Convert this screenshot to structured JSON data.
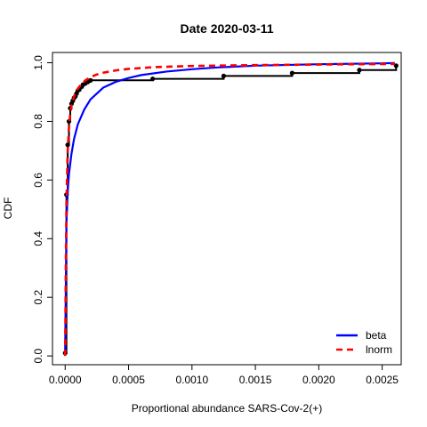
{
  "chart_data": {
    "type": "line",
    "title": "Date 2020-03-11",
    "xlabel": "Proportional abundance SARS-Cov-2(+)",
    "ylabel": "CDF",
    "xlim": [
      -0.0001,
      0.00265
    ],
    "ylim": [
      -0.03,
      1.035
    ],
    "x_ticks": [
      0,
      0.0005,
      0.001,
      0.0015,
      0.002,
      0.0025
    ],
    "x_tick_labels": [
      "0.0000",
      "0.0005",
      "0.0010",
      "0.0015",
      "0.0020",
      "0.0025"
    ],
    "y_ticks": [
      0,
      0.2,
      0.4,
      0.6,
      0.8,
      1.0
    ],
    "y_tick_labels": [
      "0.0",
      "0.2",
      "0.4",
      "0.6",
      "0.8",
      "1.0"
    ],
    "grid": false,
    "legend_position": "bottom-right",
    "empirical": {
      "x": [
        0.0,
        1e-05,
        2e-05,
        3e-05,
        4e-05,
        5e-05,
        6e-05,
        7e-05,
        8e-05,
        9e-05,
        0.0001,
        0.00012,
        0.00014,
        0.00016,
        0.00018,
        0.0002,
        0.00069,
        0.00125,
        0.00179,
        0.00232,
        0.00261
      ],
      "y": [
        0.01,
        0.55,
        0.72,
        0.8,
        0.845,
        0.86,
        0.87,
        0.88,
        0.885,
        0.895,
        0.905,
        0.915,
        0.925,
        0.93,
        0.935,
        0.94,
        0.945,
        0.955,
        0.965,
        0.975,
        0.99
      ],
      "color": "#000000"
    },
    "series": [
      {
        "name": "beta",
        "color": "#0000ff",
        "x": [
          0.0,
          1e-05,
          2e-05,
          3e-05,
          5e-05,
          7e-05,
          0.0001,
          0.00015,
          0.0002,
          0.0003,
          0.0004,
          0.0005,
          0.0006,
          0.0008,
          0.001,
          0.0012,
          0.0015,
          0.002,
          0.0025,
          0.0026
        ],
        "y": [
          0.01,
          0.45,
          0.56,
          0.62,
          0.69,
          0.74,
          0.79,
          0.84,
          0.875,
          0.915,
          0.935,
          0.948,
          0.958,
          0.97,
          0.978,
          0.984,
          0.99,
          0.995,
          0.998,
          0.999
        ]
      },
      {
        "name": "lnorm",
        "color": "#ff0000",
        "x": [
          0.0,
          5e-06,
          1e-05,
          2e-05,
          3e-05,
          4e-05,
          5e-05,
          7e-05,
          0.0001,
          0.00013,
          0.00016,
          0.0002,
          0.00025,
          0.0003,
          0.0004,
          0.0005,
          0.0007,
          0.001,
          0.0015,
          0.002,
          0.0026
        ],
        "y": [
          0.0,
          0.3,
          0.52,
          0.7,
          0.78,
          0.825,
          0.853,
          0.885,
          0.912,
          0.928,
          0.94,
          0.951,
          0.96,
          0.966,
          0.974,
          0.979,
          0.985,
          0.989,
          0.992,
          0.994,
          0.996
        ]
      }
    ]
  }
}
